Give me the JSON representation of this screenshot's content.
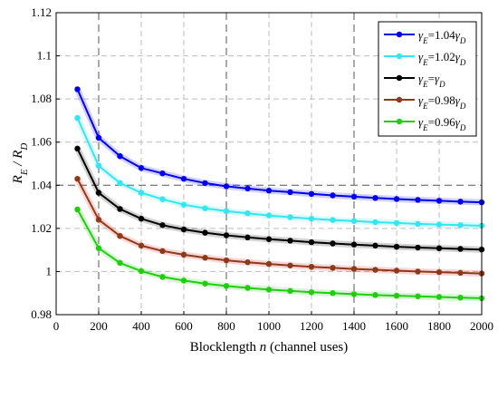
{
  "chart_data": {
    "type": "line",
    "xlabel": "Blocklength n (channel uses)",
    "xlabel_parts": [
      "Blocklength ",
      "n",
      " (channel uses)"
    ],
    "ylabel": "R_E / R_D",
    "xlim": [
      0,
      2000
    ],
    "ylim": [
      0.98,
      1.12
    ],
    "xticks": [
      0,
      200,
      400,
      600,
      800,
      1000,
      1200,
      1400,
      1600,
      1800,
      2000
    ],
    "yticks": [
      0.98,
      1,
      1.02,
      1.04,
      1.06,
      1.08,
      1.1,
      1.12
    ],
    "ytick_labels": [
      "0.98",
      "1",
      "1.02",
      "1.04",
      "1.06",
      "1.08",
      "1.1",
      "1.12"
    ],
    "dashed_emphasis_x": [
      200,
      800,
      1400
    ],
    "dashed_emphasis_y": [
      1.04
    ],
    "grid": true,
    "legend_position": "top-right",
    "x": [
      100,
      200,
      300,
      400,
      500,
      600,
      700,
      800,
      900,
      1000,
      1100,
      1200,
      1300,
      1400,
      1500,
      1600,
      1700,
      1800,
      1900,
      2000
    ],
    "series": [
      {
        "name": "γE=1.04γD",
        "legend_label": {
          "main": "γ",
          "sub": "E",
          "mid": "=1.04γ",
          "sub2": "D"
        },
        "color": "#0000ee",
        "values": [
          1.0845,
          1.062,
          1.0535,
          1.048,
          1.0455,
          1.043,
          1.041,
          1.0395,
          1.0385,
          1.0375,
          1.0368,
          1.036,
          1.0353,
          1.0347,
          1.0341,
          1.0336,
          1.0332,
          1.0328,
          1.0324,
          1.0321
        ]
      },
      {
        "name": "γE=1.02γD",
        "legend_label": {
          "main": "γ",
          "sub": "E",
          "mid": "=1.02γ",
          "sub2": "D"
        },
        "color": "#33e6f0",
        "values": [
          1.0712,
          1.049,
          1.041,
          1.0365,
          1.0335,
          1.031,
          1.0293,
          1.028,
          1.027,
          1.026,
          1.0252,
          1.0245,
          1.0239,
          1.0234,
          1.0229,
          1.0225,
          1.0221,
          1.0218,
          1.0215,
          1.0212
        ]
      },
      {
        "name": "γE=γD",
        "legend_label": {
          "main": "γ",
          "sub": "E",
          "mid": "=γ",
          "sub2": "D"
        },
        "color": "#000000",
        "values": [
          1.057,
          1.0365,
          1.029,
          1.0245,
          1.0215,
          1.0195,
          1.018,
          1.0168,
          1.0158,
          1.015,
          1.0143,
          1.0136,
          1.013,
          1.0125,
          1.012,
          1.0115,
          1.0111,
          1.0108,
          1.0105,
          1.0102
        ]
      },
      {
        "name": "γE=0.98γD",
        "legend_label": {
          "main": "γ",
          "sub": "E",
          "mid": "=0.98γ",
          "sub2": "D"
        },
        "color": "#ee1111",
        "line_color": "#8b3a1a",
        "values": [
          1.043,
          1.024,
          1.0165,
          1.012,
          1.0095,
          1.0078,
          1.0064,
          1.0052,
          1.0043,
          1.0035,
          1.0028,
          1.0022,
          1.0017,
          1.0012,
          1.0008,
          1.0004,
          1.0,
          0.9997,
          0.9994,
          0.9991
        ]
      },
      {
        "name": "γE=0.96γD",
        "legend_label": {
          "main": "γ",
          "sub": "E",
          "mid": "=0.96γ",
          "sub2": "D"
        },
        "color": "#22cc11",
        "values": [
          1.0288,
          1.0108,
          1.004,
          1.0002,
          0.9975,
          0.9958,
          0.9944,
          0.9933,
          0.9924,
          0.9916,
          0.991,
          0.9904,
          0.99,
          0.9895,
          0.9891,
          0.9888,
          0.9885,
          0.9882,
          0.9879,
          0.9876
        ]
      }
    ]
  }
}
